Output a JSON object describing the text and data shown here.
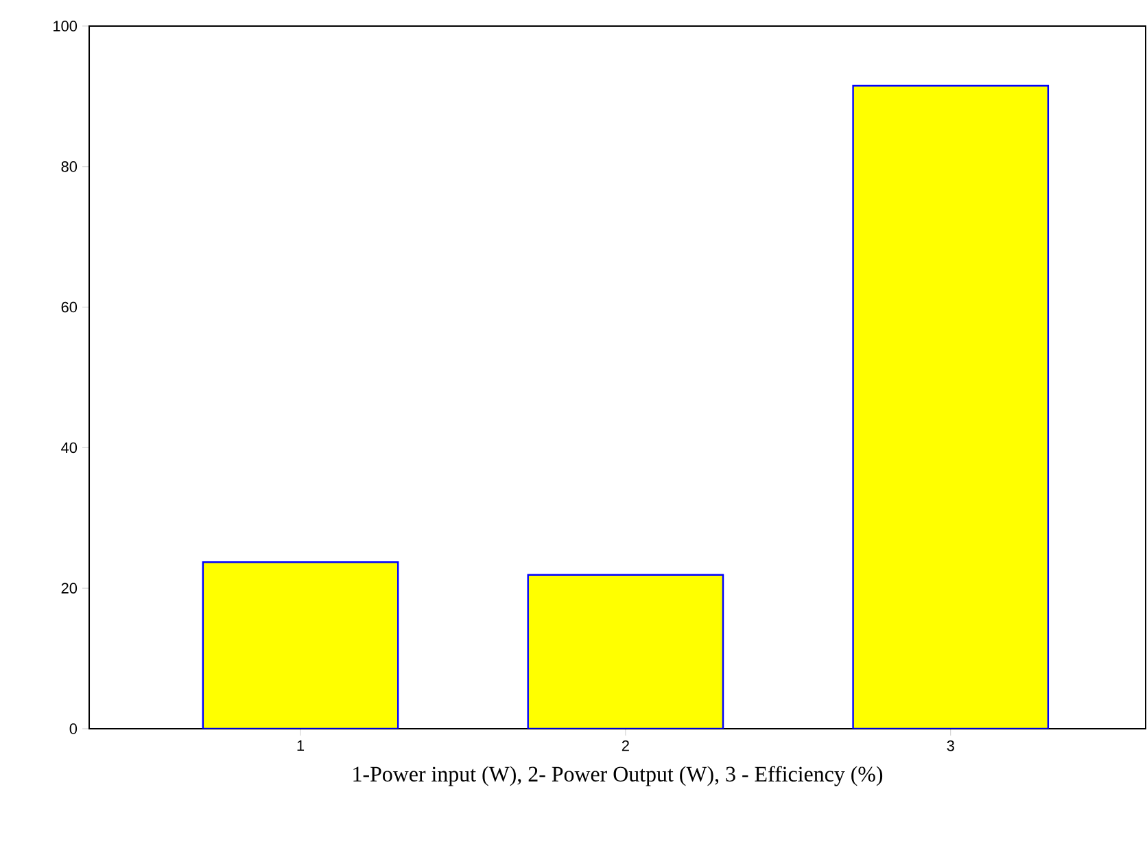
{
  "chart_data": {
    "type": "bar",
    "xlabel": "1-Power input (W), 2- Power Output (W),  3 - Efficiency (%)",
    "categories": [
      "1",
      "2",
      "3"
    ],
    "values": [
      23.7,
      21.9,
      91.5
    ],
    "color": "#ffff00",
    "ylim": [
      0,
      100
    ],
    "yticks": [
      0,
      20,
      40,
      60,
      80,
      100
    ],
    "grid": false
  }
}
